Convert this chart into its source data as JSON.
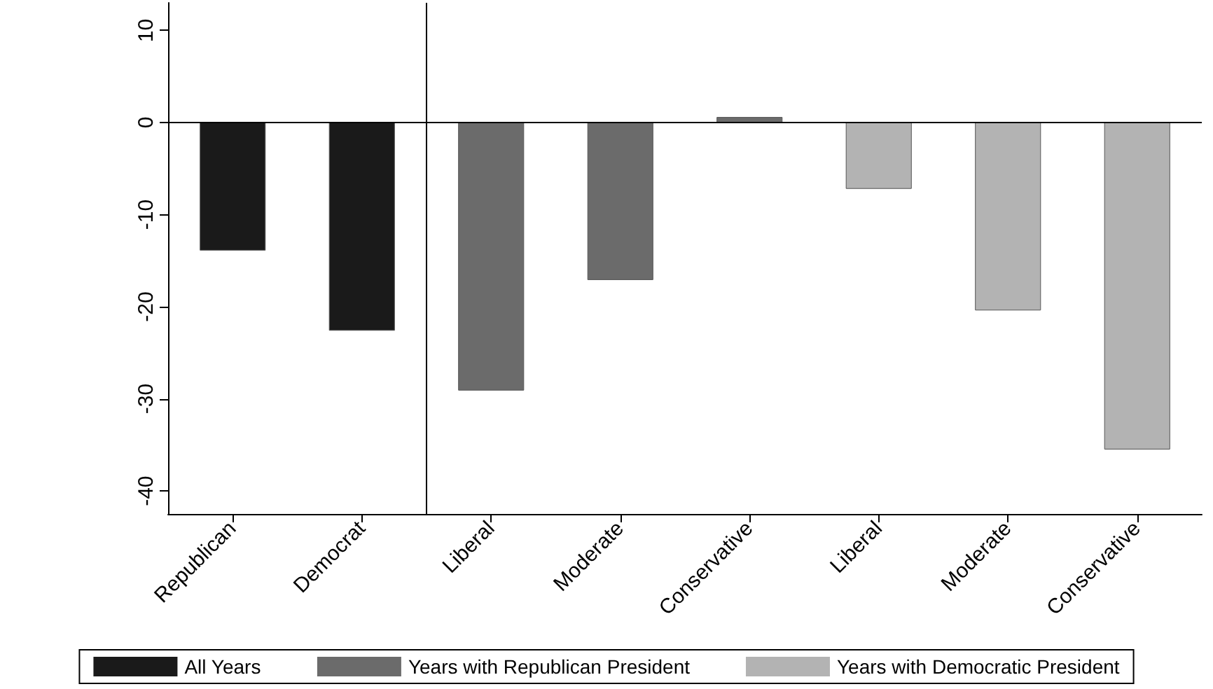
{
  "chart_data": {
    "type": "bar",
    "categories": [
      "Republican",
      "Democrat",
      "Liberal",
      "Moderate",
      "Conservative",
      "Liberal",
      "Moderate",
      "Conservative"
    ],
    "series": [
      {
        "name": "All Years",
        "color": "#1a1a1a",
        "values": [
          -13.9,
          -22.6,
          null,
          null,
          null,
          null,
          null,
          null
        ]
      },
      {
        "name": "Years with Republican President",
        "color": "#6b6b6b",
        "values": [
          null,
          null,
          -29.1,
          -17.1,
          0.6,
          null,
          null,
          null
        ]
      },
      {
        "name": "Years with Democratic President",
        "color": "#b3b3b3",
        "values": [
          null,
          null,
          null,
          null,
          null,
          -7.2,
          -20.4,
          -35.5
        ]
      }
    ],
    "ylim": [
      -42.5,
      13
    ],
    "yticks": [
      -40,
      -30,
      -20,
      -10,
      0,
      10
    ],
    "ref_lines": [
      {
        "axis": "y",
        "value": 0
      }
    ],
    "grid": false,
    "legend": "bottom"
  }
}
